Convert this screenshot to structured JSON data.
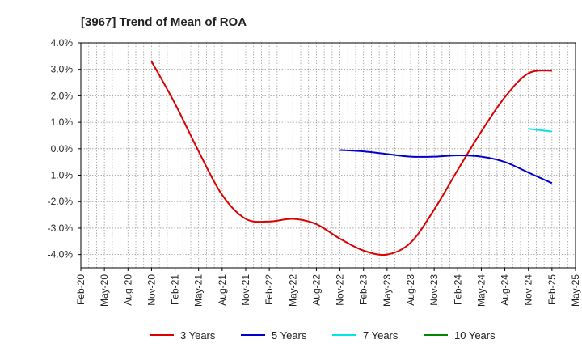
{
  "chart_data": {
    "type": "line",
    "title": "[3967]  Trend of Mean of ROA",
    "xlabel": "",
    "ylabel": "",
    "x": [
      "Feb-20",
      "May-20",
      "Aug-20",
      "Nov-20",
      "Feb-21",
      "May-21",
      "Aug-21",
      "Nov-21",
      "Feb-22",
      "May-22",
      "Aug-22",
      "Nov-22",
      "Feb-23",
      "May-23",
      "Aug-23",
      "Nov-23",
      "Feb-24",
      "May-24",
      "Aug-24",
      "Nov-24",
      "Feb-25",
      "May-25"
    ],
    "ylim": [
      -4.5,
      4.0
    ],
    "yticks": [
      4.0,
      3.0,
      2.0,
      1.0,
      0.0,
      -1.0,
      -2.0,
      -3.0,
      -4.0
    ],
    "ytick_labels": [
      "4.0%",
      "3.0%",
      "2.0%",
      "1.0%",
      "0.0%",
      "-1.0%",
      "-2.0%",
      "-3.0%",
      "-4.0%"
    ],
    "grid": true,
    "legend_position": "bottom",
    "series": [
      {
        "name": "3 Years",
        "color": "#dd0000",
        "values": [
          null,
          null,
          null,
          3.3,
          1.7,
          -0.1,
          -1.75,
          -2.65,
          -2.75,
          -2.65,
          -2.85,
          -3.4,
          -3.85,
          -4.0,
          -3.55,
          -2.3,
          -0.8,
          0.65,
          1.95,
          2.85,
          2.95,
          null
        ]
      },
      {
        "name": "5 Years",
        "color": "#0000cc",
        "values": [
          null,
          null,
          null,
          null,
          null,
          null,
          null,
          null,
          null,
          null,
          null,
          -0.05,
          -0.1,
          -0.2,
          -0.3,
          -0.3,
          -0.25,
          -0.3,
          -0.5,
          -0.9,
          -1.3,
          null
        ]
      },
      {
        "name": "7 Years",
        "color": "#00e5e5",
        "values": [
          null,
          null,
          null,
          null,
          null,
          null,
          null,
          null,
          null,
          null,
          null,
          null,
          null,
          null,
          null,
          null,
          null,
          null,
          null,
          0.75,
          0.65,
          null
        ]
      },
      {
        "name": "10 Years",
        "color": "#008800",
        "values": [
          null,
          null,
          null,
          null,
          null,
          null,
          null,
          null,
          null,
          null,
          null,
          null,
          null,
          null,
          null,
          null,
          null,
          null,
          null,
          null,
          null,
          null
        ]
      }
    ]
  }
}
